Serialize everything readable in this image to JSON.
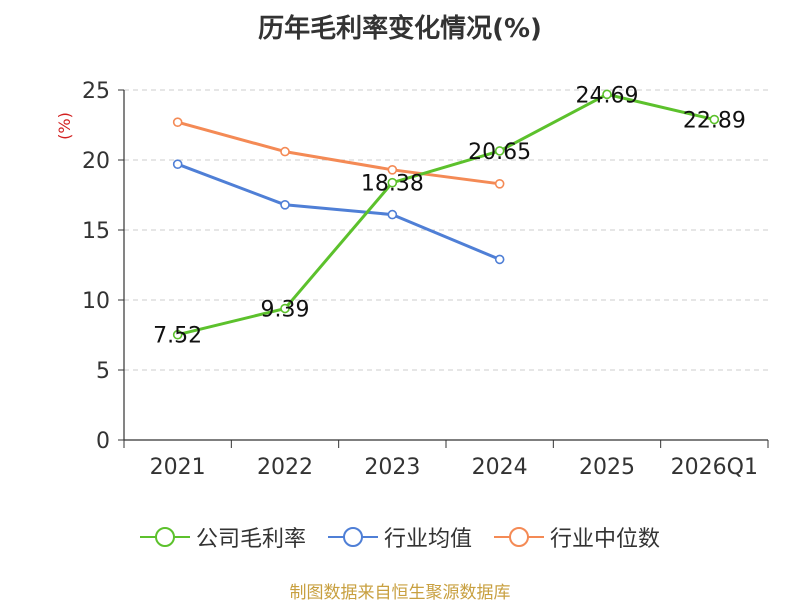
{
  "chart_data": {
    "type": "line",
    "title": "历年毛利率变化情况(%)",
    "ylabel": "(%)",
    "xlabel": "",
    "categories": [
      "2021",
      "2022",
      "2023",
      "2024",
      "2025",
      "2026Q1"
    ],
    "ylim": [
      0,
      25
    ],
    "yticks": [
      "0",
      "5",
      "10",
      "15",
      "20",
      "25"
    ],
    "grid": true,
    "legend_position": "bottom",
    "series": [
      {
        "name": "公司毛利率",
        "color": "#5cc12c",
        "values": [
          7.52,
          9.39,
          18.38,
          20.65,
          24.69,
          22.89
        ],
        "labels": [
          "7.52",
          "9.39",
          "18.38",
          "20.65",
          "24.69",
          "22.89"
        ]
      },
      {
        "name": "行业均值",
        "color": "#4f7fd6",
        "values": [
          19.7,
          16.8,
          16.1,
          12.9,
          null,
          null
        ]
      },
      {
        "name": "行业中位数",
        "color": "#f48a55",
        "values": [
          22.7,
          20.6,
          19.3,
          18.3,
          null,
          null
        ]
      }
    ]
  },
  "source_note": "制图数据来自恒生聚源数据库"
}
